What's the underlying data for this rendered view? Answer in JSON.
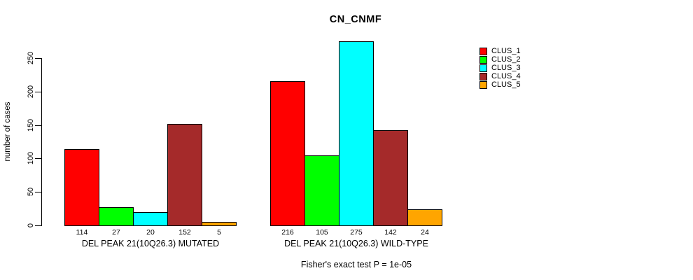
{
  "chart_data": {
    "type": "bar",
    "title": "CN_CNMF",
    "ylabel": "number of cases",
    "xlabel": "",
    "subtitle": "Fisher's exact test P = 1e-05",
    "yticks": [
      "0",
      "50",
      "100",
      "150",
      "200",
      "250"
    ],
    "ylim": [
      0,
      278
    ],
    "grid": false,
    "legend_position": "top-right",
    "bar_border_color": "#000000",
    "series": [
      {
        "name": "CLUS_1",
        "color": "#FF0000"
      },
      {
        "name": "CLUS_2",
        "color": "#00FF00"
      },
      {
        "name": "CLUS_3",
        "color": "#00FFFF"
      },
      {
        "name": "CLUS_4",
        "color": "#A52A2A"
      },
      {
        "name": "CLUS_5",
        "color": "#FFA500"
      }
    ],
    "groups": [
      {
        "label": "DEL PEAK 21(10Q26.3) MUTATED",
        "values": [
          "114",
          "27",
          "20",
          "152",
          "5"
        ]
      },
      {
        "label": "DEL PEAK 21(10Q26.3) WILD-TYPE",
        "values": [
          "216",
          "105",
          "275",
          "142",
          "24"
        ]
      }
    ]
  }
}
